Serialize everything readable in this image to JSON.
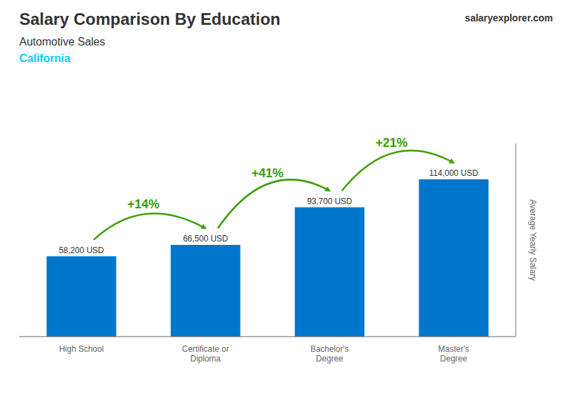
{
  "chart_data": {
    "type": "bar",
    "title": "Salary Comparison By Education",
    "subtitle": "Automotive Sales",
    "categories": [
      "High School",
      "Certificate or\nDiploma",
      "Bachelor's\nDegree",
      "Master's\nDegree"
    ],
    "values": [
      58200,
      66500,
      93700,
      114000
    ],
    "value_labels": [
      "58,200 USD",
      "66,500 USD",
      "93,700 USD",
      "114,000 USD"
    ],
    "data_labels": true,
    "color": "#0077cc",
    "ylabel": "Average Yearly Salary",
    "ylim": [
      0,
      140000
    ],
    "yticks": [],
    "tick_labels": "x",
    "grid": false,
    "annotations": [
      {
        "text": "California",
        "color": "#00cfff"
      },
      {
        "text": "salaryexplorer.com"
      },
      {
        "text": "+14%",
        "from": "High School",
        "to": "Certificate or\nDiploma",
        "color": "#3a9d00"
      },
      {
        "text": "+41%",
        "from": "Certificate or\nDiploma",
        "to": "Bachelor's\nDegree",
        "color": "#3a9d00"
      },
      {
        "text": "+21%",
        "from": "Bachelor's\nDegree",
        "to": "Master's\nDegree",
        "color": "#3a9d00"
      }
    ]
  }
}
